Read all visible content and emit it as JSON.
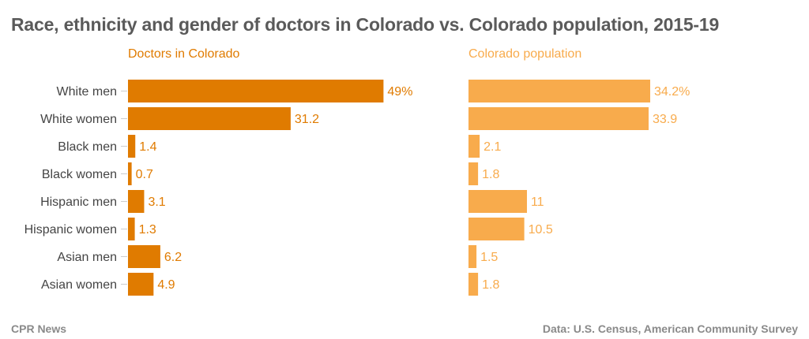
{
  "title": "Race, ethnicity and gender of doctors in Colorado vs. Colorado population, 2015-19",
  "footer": {
    "source_left": "CPR News",
    "source_right": "Data: U.S. Census, American Community Survey"
  },
  "colors": {
    "doctors": "#e07b00",
    "population": "#f8ab4c",
    "tick": "#cccccc"
  },
  "chart_data": {
    "type": "bar",
    "orientation": "horizontal",
    "title": "Race, ethnicity and gender of doctors in Colorado vs. Colorado population, 2015-19",
    "categories": [
      "White men",
      "White women",
      "Black men",
      "Black women",
      "Hispanic men",
      "Hispanic women",
      "Asian men",
      "Asian women"
    ],
    "xlim": [
      0,
      50
    ],
    "series": [
      {
        "name": "Doctors in Colorado",
        "values": [
          49,
          31.2,
          1.4,
          0.7,
          3.1,
          1.3,
          6.2,
          4.9
        ],
        "labels": [
          "49%",
          "31.2",
          "1.4",
          "0.7",
          "3.1",
          "1.3",
          "6.2",
          "4.9"
        ]
      },
      {
        "name": "Colorado population",
        "values": [
          34.2,
          33.9,
          2.1,
          1.8,
          11,
          10.5,
          1.5,
          1.8
        ],
        "labels": [
          "34.2%",
          "33.9",
          "2.1",
          "1.8",
          "11",
          "10.5",
          "1.5",
          "1.8"
        ]
      }
    ]
  }
}
